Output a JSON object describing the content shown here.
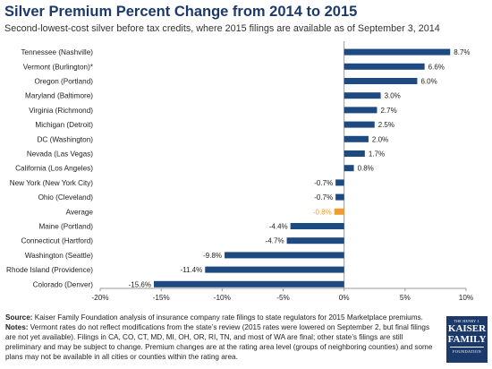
{
  "header": {
    "title": "Silver Premium Percent Change from 2014 to 2015",
    "subtitle": "Second-lowest-cost silver before tax credits, where 2015 filings are available as of September 3, 2014"
  },
  "chart_data": {
    "type": "bar",
    "orientation": "horizontal",
    "categories": [
      "Tennessee (Nashville)",
      "Vermont (Burlington)*",
      "Oregon (Portland)",
      "Maryland (Baltimore)",
      "Virginia (Richmond)",
      "Michigan (Detroit)",
      "DC (Washington)",
      "Nevada (Las Vegas)",
      "California (Los Angeles)",
      "New York (New York City)",
      "Ohio (Cleveland)",
      "Average",
      "Maine (Portland)",
      "Connecticut (Hartford)",
      "Washington (Seattle)",
      "Rhode Island (Providence)",
      "Colorado (Denver)"
    ],
    "values": [
      8.7,
      6.6,
      6.0,
      3.0,
      2.7,
      2.5,
      2.0,
      1.7,
      0.8,
      -0.7,
      -0.7,
      -0.8,
      -4.4,
      -4.7,
      -9.8,
      -11.4,
      -15.6
    ],
    "value_labels": [
      "8.7%",
      "6.6%",
      "6.0%",
      "3.0%",
      "2.7%",
      "2.5%",
      "2.0%",
      "1.7%",
      "0.8%",
      "-0.7%",
      "-0.7%",
      "-0.8%",
      "-4.4%",
      "-4.7%",
      "-9.8%",
      "-11.4%",
      "-15.6%"
    ],
    "highlight_category": "Average",
    "xlim": [
      -20,
      10
    ],
    "xticks": [
      -20,
      -15,
      -10,
      -5,
      0,
      5,
      10
    ],
    "xtick_labels": [
      "-20%",
      "-15%",
      "-10%",
      "-5%",
      "0%",
      "5%",
      "10%"
    ],
    "grid": false,
    "colors": {
      "bar": "#1e4a82",
      "highlight": "#f29a2e",
      "label": "#222222",
      "highlight_label": "#f29a2e"
    }
  },
  "footer": {
    "source_label": "Source:",
    "source_text": " Kaiser Family Foundation analysis of insurance company rate filings to state regulators for 2015 Marketplace premiums.",
    "notes_label": "Notes:",
    "notes_text": " Vermont rates do not reflect modifications from the state’s review (2015 rates were lowered on September 2, but final filings are not yet available). Filings in CA, CO, CT, MD, MI, OH, OR, RI, TN, and most of WA are final; other state’s filings are still preliminary and may be subject to change. Premium changes are at the rating area level (groups of neighboring counties) and some plans may not be available in all cities or counties within the rating area."
  },
  "logo": {
    "line0": "THE HENRY J.",
    "line1": "KAISER",
    "line2": "FAMILY",
    "line3": "FOUNDATION"
  }
}
